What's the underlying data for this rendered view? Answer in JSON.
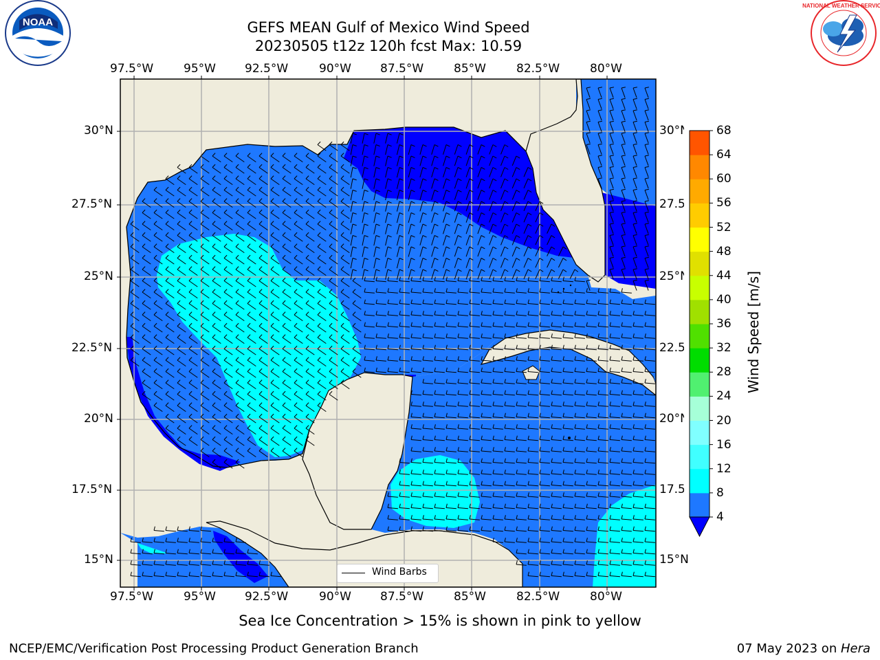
{
  "title": {
    "line1": "GEFS MEAN Gulf of Mexico Wind Speed",
    "line2": "20230505 t12z 120h fcst   Max: 10.59"
  },
  "axes": {
    "lon_labels": [
      "97.5°W",
      "95°W",
      "92.5°W",
      "90°W",
      "87.5°W",
      "85°W",
      "82.5°W",
      "80°W"
    ],
    "lat_labels_left": [
      "30°N",
      "27.5°N",
      "25°N",
      "22.5°N",
      "20°N",
      "17.5°N",
      "15°N"
    ],
    "lat_labels_right": [
      "30°N",
      "27.5",
      "25°N",
      "22.5",
      "20°N",
      "17.5",
      "15°N"
    ]
  },
  "map": {
    "lon_range": [
      -98,
      -78.2
    ],
    "lat_range": [
      14.0,
      31.8
    ],
    "land_color": "#efecdc",
    "wind_barbs_legend": "Wind Barbs"
  },
  "colorbar": {
    "label": "Wind Speed [m/s]",
    "ticks": [
      "4",
      "8",
      "12",
      "16",
      "20",
      "24",
      "28",
      "32",
      "36",
      "40",
      "44",
      "48",
      "52",
      "56",
      "60",
      "64",
      "68"
    ],
    "colors": [
      "#1e78ff",
      "#00ffff",
      "#40ffff",
      "#80ffff",
      "#a6ffd8",
      "#50f070",
      "#00dd00",
      "#50e000",
      "#a0e000",
      "#c8ff00",
      "#e0e000",
      "#ffff00",
      "#ffcc00",
      "#ffaa00",
      "#ff8800",
      "#ff5500",
      "#ff2200",
      "#ff0000"
    ],
    "under_color": "#0000ff"
  },
  "note": "Sea Ice Concentration > 15% is shown in pink to yellow",
  "footer": {
    "left": "NCEP/EMC/Verification Post Processing Product Generation Branch",
    "right_date": "07 May 2023 on ",
    "right_host": "Hera"
  },
  "logos": {
    "noaa": "NOAA",
    "noaa_ring": "NATIONAL OCEANIC AND ATMOSPHERIC ADMINISTRATION · U.S. DEPARTMENT OF COMMERCE",
    "nws_ring": "NATIONAL WEATHER SERVICE"
  }
}
